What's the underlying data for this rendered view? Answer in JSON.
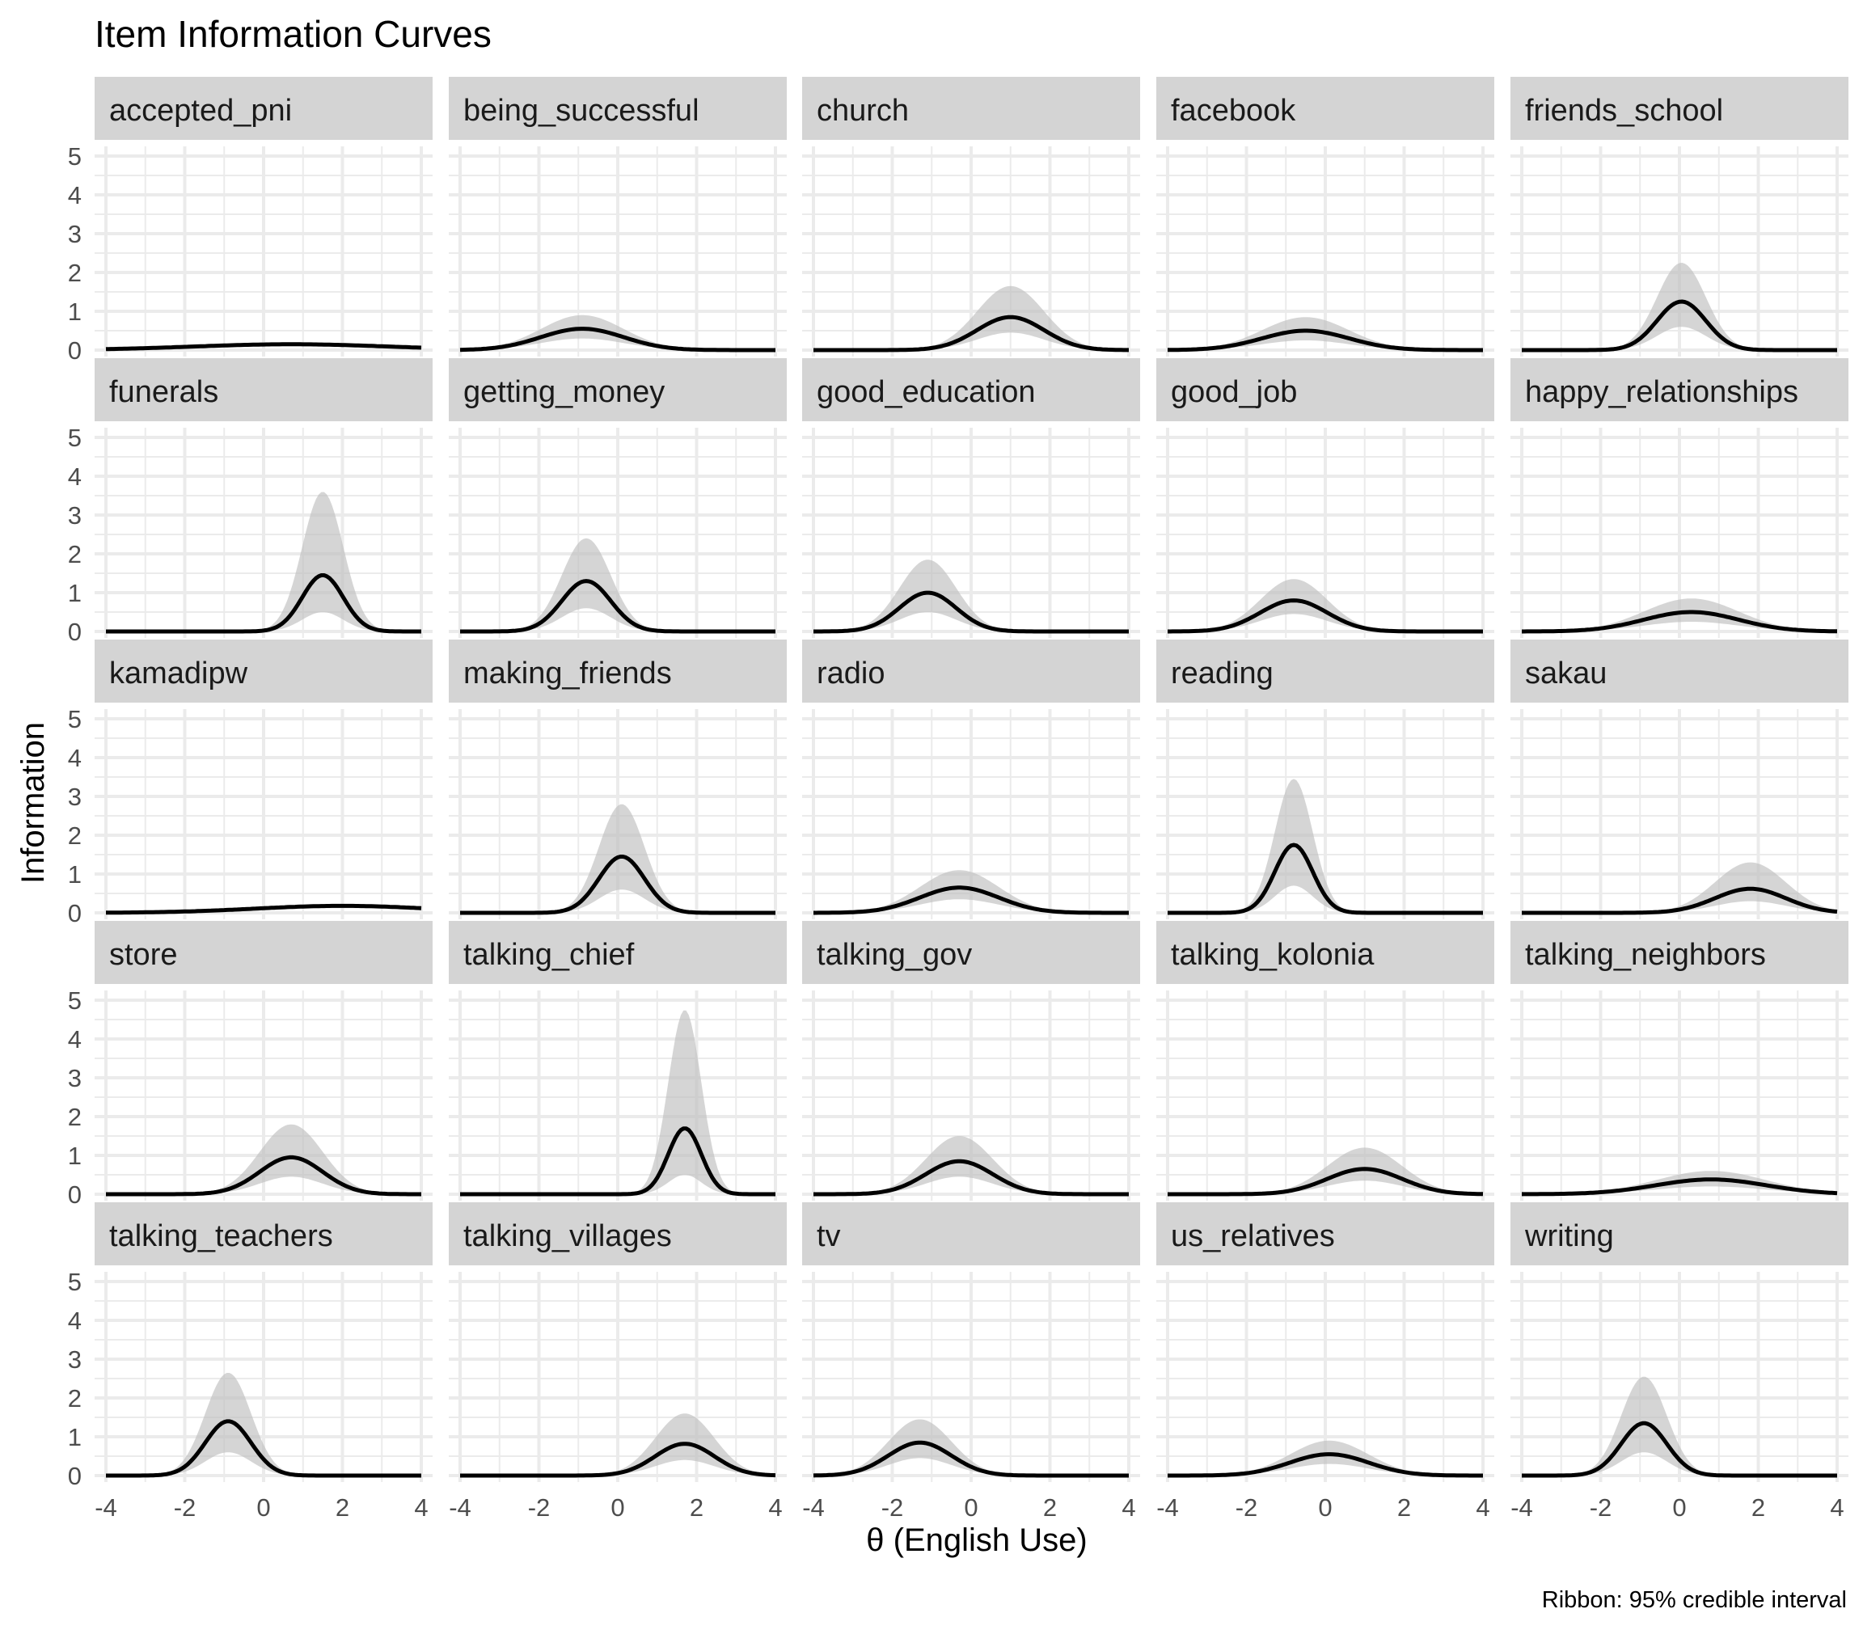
{
  "chart_data": {
    "type": "line",
    "title": "Item Information Curves",
    "xlabel": "θ (English Use)",
    "ylabel": "Information",
    "caption": "Ribbon: 95% credible interval",
    "xlim": [
      -4,
      4
    ],
    "ylim": [
      0,
      5
    ],
    "x_ticks": [
      "-4",
      "-2",
      "0",
      "2",
      "4"
    ],
    "y_ticks": [
      "0",
      "1",
      "2",
      "3",
      "4",
      "5"
    ],
    "grid": true,
    "colors": {
      "line": "#000000",
      "ribbon": "#bfbfbf",
      "strip": "#d4d4d4",
      "grid": "#ebebeb"
    },
    "panels": [
      {
        "name": "accepted_pni",
        "peak": 0.15,
        "loc": 0.7,
        "scale": 2.5,
        "upper": 0.2,
        "lower": 0.1
      },
      {
        "name": "being_successful",
        "peak": 0.55,
        "loc": -0.9,
        "scale": 1.05,
        "upper": 0.9,
        "lower": 0.3
      },
      {
        "name": "church",
        "peak": 0.85,
        "loc": 1.0,
        "scale": 0.85,
        "upper": 1.65,
        "lower": 0.45
      },
      {
        "name": "facebook",
        "peak": 0.5,
        "loc": -0.5,
        "scale": 1.1,
        "upper": 0.85,
        "lower": 0.25
      },
      {
        "name": "friends_school",
        "peak": 1.25,
        "loc": 0.05,
        "scale": 0.62,
        "upper": 2.25,
        "lower": 0.6
      },
      {
        "name": "funerals",
        "peak": 1.45,
        "loc": 1.5,
        "scale": 0.52,
        "upper": 3.6,
        "lower": 0.5
      },
      {
        "name": "getting_money",
        "peak": 1.3,
        "loc": -0.8,
        "scale": 0.62,
        "upper": 2.4,
        "lower": 0.6
      },
      {
        "name": "good_education",
        "peak": 1.0,
        "loc": -1.1,
        "scale": 0.72,
        "upper": 1.85,
        "lower": 0.5
      },
      {
        "name": "good_job",
        "peak": 0.8,
        "loc": -0.8,
        "scale": 0.85,
        "upper": 1.35,
        "lower": 0.45
      },
      {
        "name": "happy_relationships",
        "peak": 0.5,
        "loc": 0.3,
        "scale": 1.2,
        "upper": 0.85,
        "lower": 0.25
      },
      {
        "name": "kamadipw",
        "peak": 0.18,
        "loc": 2.0,
        "scale": 2.2,
        "upper": 0.23,
        "lower": 0.12
      },
      {
        "name": "making_friends",
        "peak": 1.45,
        "loc": 0.1,
        "scale": 0.58,
        "upper": 2.8,
        "lower": 0.6
      },
      {
        "name": "radio",
        "peak": 0.65,
        "loc": -0.3,
        "scale": 1.0,
        "upper": 1.1,
        "lower": 0.35
      },
      {
        "name": "reading",
        "peak": 1.75,
        "loc": -0.8,
        "scale": 0.48,
        "upper": 3.45,
        "lower": 0.7
      },
      {
        "name": "sakau",
        "peak": 0.62,
        "loc": 1.8,
        "scale": 0.9,
        "upper": 1.3,
        "lower": 0.3
      },
      {
        "name": "store",
        "peak": 0.95,
        "loc": 0.7,
        "scale": 0.8,
        "upper": 1.8,
        "lower": 0.45
      },
      {
        "name": "talking_chief",
        "peak": 1.7,
        "loc": 1.7,
        "scale": 0.42,
        "upper": 4.75,
        "lower": 0.5
      },
      {
        "name": "talking_gov",
        "peak": 0.85,
        "loc": -0.3,
        "scale": 0.85,
        "upper": 1.5,
        "lower": 0.45
      },
      {
        "name": "talking_kolonia",
        "peak": 0.65,
        "loc": 1.0,
        "scale": 0.95,
        "upper": 1.2,
        "lower": 0.35
      },
      {
        "name": "talking_neighbors",
        "peak": 0.38,
        "loc": 0.8,
        "scale": 1.4,
        "upper": 0.6,
        "lower": 0.2
      },
      {
        "name": "talking_teachers",
        "peak": 1.4,
        "loc": -0.9,
        "scale": 0.58,
        "upper": 2.65,
        "lower": 0.6
      },
      {
        "name": "talking_villages",
        "peak": 0.82,
        "loc": 1.7,
        "scale": 0.75,
        "upper": 1.6,
        "lower": 0.4
      },
      {
        "name": "tv",
        "peak": 0.85,
        "loc": -1.3,
        "scale": 0.8,
        "upper": 1.45,
        "lower": 0.45
      },
      {
        "name": "us_relatives",
        "peak": 0.55,
        "loc": 0.1,
        "scale": 1.0,
        "upper": 0.9,
        "lower": 0.3
      },
      {
        "name": "writing",
        "peak": 1.35,
        "loc": -0.9,
        "scale": 0.58,
        "upper": 2.55,
        "lower": 0.6
      }
    ]
  }
}
